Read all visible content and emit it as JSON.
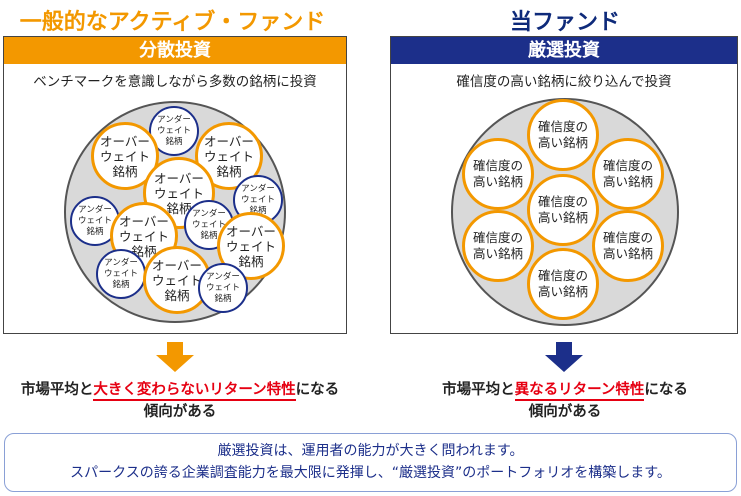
{
  "left": {
    "heading": "一般的なアクティブ・ファンド",
    "panel_title": "分散投資",
    "subtitle": "ベンチマークを意識しながら多数の銘柄に投資",
    "over_label": "オーバー\nウェイト\n銘柄",
    "under_label": "アンダー\nウェイト\n銘柄",
    "result_line1_a": "市場平均と",
    "result_line1_b": "大きく変わらないリターン特性",
    "result_line1_c": "になる",
    "result_line2": "傾向がある"
  },
  "right": {
    "heading": "当ファンド",
    "panel_title": "厳選投資",
    "subtitle": "確信度の高い銘柄に絞り込んで投資",
    "conc_label": "確信度の\n高い銘柄",
    "result_line1_a": "市場平均と",
    "result_line1_b": "異なるリターン特性",
    "result_line1_c": "になる",
    "result_line2": "傾向がある"
  },
  "footer": {
    "line1": "厳選投資は、運用者の能力が大きく問われます。",
    "line2": "スパークスの誇る企業調査能力を最大限に発揮し、“厳選投資”のポートフォリオを構築します。"
  },
  "colors": {
    "orange": "#f39800",
    "navy": "#1c2f8a",
    "red": "#e60012"
  }
}
